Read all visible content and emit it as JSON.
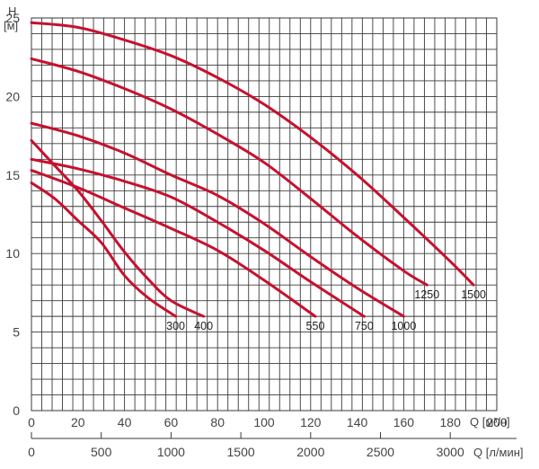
{
  "chart_data": {
    "type": "line",
    "y_axis": {
      "label_top": "H",
      "label_unit": "[м]",
      "ylim": [
        0,
        25
      ],
      "ticks": [
        "0",
        "5",
        "10",
        "15",
        "20",
        "25"
      ]
    },
    "x_axis": {
      "label": "Q [м³/ч]",
      "xlim": [
        0,
        200
      ],
      "ticks": [
        "0",
        "20",
        "40",
        "60",
        "80",
        "100",
        "120",
        "140",
        "160",
        "180",
        "200"
      ]
    },
    "x2_axis": {
      "label": "Q [л/мин]",
      "ticks": [
        "0",
        "500",
        "1000",
        "1500",
        "2000",
        "2500",
        "3000"
      ],
      "tick_values": [
        0,
        500,
        1000,
        1500,
        2000,
        2500,
        3000
      ]
    },
    "grid": true,
    "series": [
      {
        "name": "300",
        "color": "#c8102e",
        "points": [
          [
            0,
            14.5
          ],
          [
            10,
            13.5
          ],
          [
            20,
            12.1
          ],
          [
            30,
            10.7
          ],
          [
            40,
            8.6
          ],
          [
            50,
            7.2
          ],
          [
            62,
            6.0
          ]
        ]
      },
      {
        "name": "400",
        "color": "#c8102e",
        "points": [
          [
            0,
            17.2
          ],
          [
            10,
            15.6
          ],
          [
            20,
            14.0
          ],
          [
            30,
            12.1
          ],
          [
            40,
            10.1
          ],
          [
            50,
            8.4
          ],
          [
            60,
            7.0
          ],
          [
            74,
            6.0
          ]
        ]
      },
      {
        "name": "550",
        "color": "#c8102e",
        "points": [
          [
            0,
            15.3
          ],
          [
            20,
            14.2
          ],
          [
            40,
            12.9
          ],
          [
            60,
            11.6
          ],
          [
            80,
            10.2
          ],
          [
            100,
            8.3
          ],
          [
            122,
            6.0
          ]
        ]
      },
      {
        "name": "750",
        "color": "#c8102e",
        "points": [
          [
            0,
            16.0
          ],
          [
            20,
            15.4
          ],
          [
            40,
            14.6
          ],
          [
            60,
            13.6
          ],
          [
            80,
            12.0
          ],
          [
            100,
            10.2
          ],
          [
            120,
            8.2
          ],
          [
            143,
            6.0
          ]
        ]
      },
      {
        "name": "1000",
        "color": "#c8102e",
        "points": [
          [
            0,
            18.3
          ],
          [
            20,
            17.5
          ],
          [
            40,
            16.4
          ],
          [
            60,
            15.0
          ],
          [
            80,
            13.7
          ],
          [
            100,
            11.9
          ],
          [
            120,
            9.8
          ],
          [
            140,
            7.8
          ],
          [
            160,
            6.0
          ]
        ]
      },
      {
        "name": "1250",
        "color": "#c8102e",
        "points": [
          [
            0,
            22.4
          ],
          [
            20,
            21.6
          ],
          [
            40,
            20.5
          ],
          [
            60,
            19.2
          ],
          [
            80,
            17.6
          ],
          [
            100,
            15.8
          ],
          [
            120,
            13.5
          ],
          [
            140,
            11.1
          ],
          [
            160,
            8.9
          ],
          [
            170,
            8.0
          ]
        ]
      },
      {
        "name": "1500",
        "color": "#c8102e",
        "points": [
          [
            0,
            24.7
          ],
          [
            20,
            24.4
          ],
          [
            40,
            23.6
          ],
          [
            60,
            22.6
          ],
          [
            80,
            21.2
          ],
          [
            100,
            19.5
          ],
          [
            120,
            17.4
          ],
          [
            140,
            15.0
          ],
          [
            160,
            12.3
          ],
          [
            180,
            9.5
          ],
          [
            190,
            8.0
          ]
        ]
      }
    ]
  }
}
